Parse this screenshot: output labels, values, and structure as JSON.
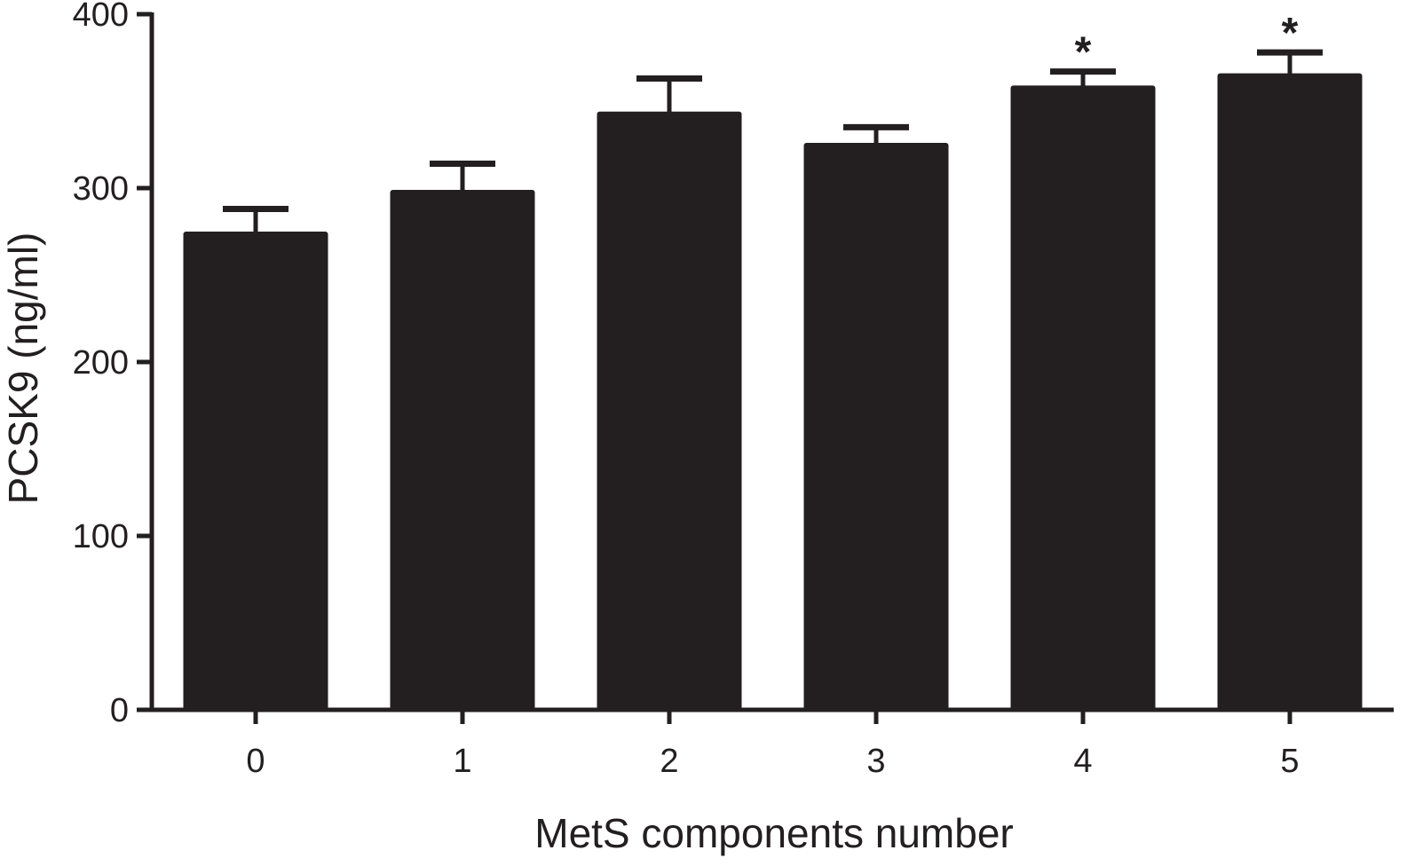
{
  "chart_data": {
    "type": "bar",
    "title": "",
    "xlabel": "MetS components number",
    "ylabel": "PCSK9 (ng/ml)",
    "categories": [
      "0",
      "1",
      "2",
      "3",
      "4",
      "5"
    ],
    "values": [
      275,
      299,
      344,
      326,
      359,
      366
    ],
    "error_upper": [
      288,
      314,
      363,
      335,
      367,
      378
    ],
    "annotations": [
      "",
      "",
      "",
      "",
      "*",
      "*"
    ],
    "ylim": [
      0,
      400
    ],
    "yticks": [
      "0",
      "100",
      "200",
      "300",
      "400"
    ],
    "grid": false,
    "legend": "none",
    "colors": {
      "bar": "#231f20",
      "axis": "#231f20",
      "text": "#231f20"
    }
  }
}
